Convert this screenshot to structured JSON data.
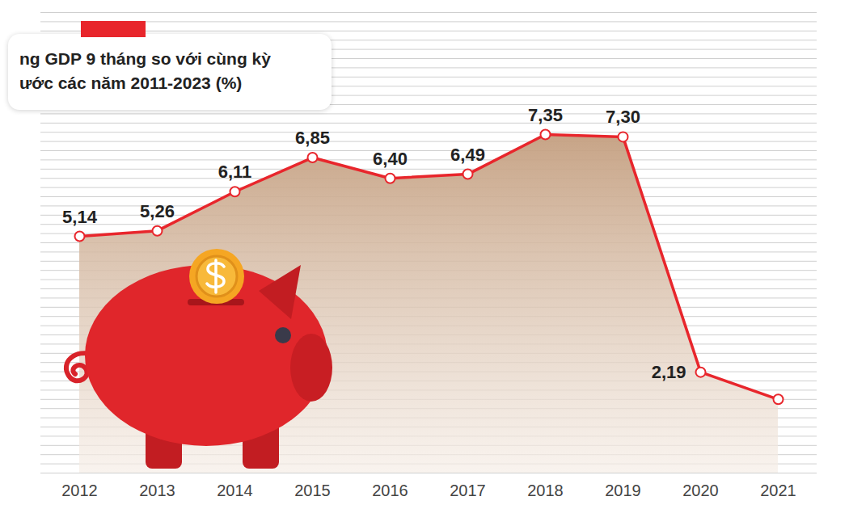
{
  "chart_data": {
    "type": "line",
    "title": "ng GDP 9 tháng so với cùng kỳ",
    "subtitle": "ước các năm 2011-2023 (%)",
    "categories": [
      "2012",
      "2013",
      "2014",
      "2015",
      "2016",
      "2017",
      "2018",
      "2019",
      "2020",
      "2021"
    ],
    "values": [
      5.14,
      5.26,
      6.11,
      6.85,
      6.4,
      6.49,
      7.35,
      7.3,
      2.19,
      1.6
    ],
    "value_labels": [
      "5,14",
      "5,26",
      "6,11",
      "6,85",
      "6,40",
      "6,49",
      "7,35",
      "7,30",
      "2,19",
      null
    ],
    "color": "#e8262c",
    "ylim": [
      0,
      10
    ],
    "yticks": [
      0,
      0.2,
      0.4,
      0.6,
      0.8,
      1,
      1.2,
      1.4,
      1.6,
      1.8,
      2,
      2.2,
      2.4,
      2.6,
      2.8,
      3,
      3.2,
      3.4,
      3.6,
      3.8,
      4,
      4.2,
      4.4,
      4.6,
      4.8,
      5,
      5.2,
      5.4,
      5.6,
      5.8,
      6,
      6.2,
      6.4,
      6.6,
      6.8,
      7,
      7.2,
      7.4,
      7.6,
      7.8,
      8,
      8.2,
      8.4,
      8.6,
      8.8,
      9,
      9.2,
      9.4,
      9.6,
      9.8,
      10
    ],
    "grid": true,
    "tick_labels": "x",
    "data_labels": true,
    "marker": "circle"
  }
}
